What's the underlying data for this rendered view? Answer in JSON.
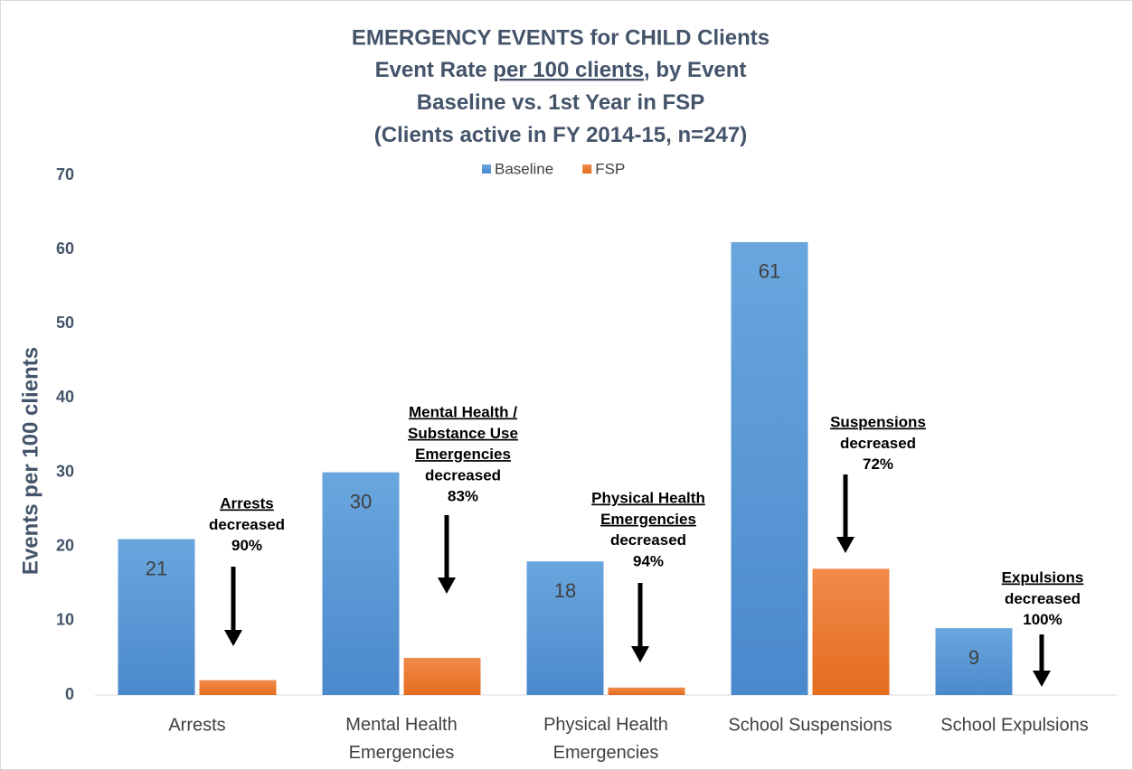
{
  "chart_data": {
    "type": "bar",
    "title": "EMERGENCY EVENTS for CHILD Clients",
    "subtitle_lines": [
      [
        {
          "text": "Event Rate "
        },
        {
          "text": "per 100 clients",
          "underline": true
        },
        {
          "text": ", by Event"
        }
      ],
      [
        {
          "text": "Baseline vs. 1st Year in FSP"
        }
      ],
      [
        {
          "text": "(Clients active in FY 2014-15, n=247)"
        }
      ]
    ],
    "ylabel": "Events per 100 clients",
    "categories": [
      "Arrests",
      "Mental Health Emergencies",
      "Physical Health Emergencies",
      "School Suspensions",
      "School Expulsions"
    ],
    "series": [
      {
        "name": "Baseline",
        "color": "#5b9bd5",
        "values": [
          21,
          30,
          18,
          61,
          9
        ],
        "show_labels": true
      },
      {
        "name": "FSP",
        "color": "#ed7d31",
        "values": [
          2,
          5,
          1,
          17,
          0
        ],
        "show_labels": false
      }
    ],
    "ylim": [
      0,
      70
    ],
    "yticks": [
      0,
      10,
      20,
      30,
      40,
      50,
      60,
      70
    ],
    "grid": true,
    "legend": "top",
    "annotations": [
      {
        "lines": [
          {
            "text": "Arrests",
            "underline": true
          },
          {
            "text": "decreased"
          },
          {
            "text": "90%"
          }
        ]
      },
      {
        "lines": [
          {
            "text": "Mental Health /",
            "underline": true
          },
          {
            "text": "Substance Use",
            "underline": true
          },
          {
            "text": "Emergencies",
            "underline": true
          },
          {
            "text": "decreased"
          },
          {
            "text": "83%"
          }
        ]
      },
      {
        "lines": [
          {
            "text": "Physical Health",
            "underline": true
          },
          {
            "text": "Emergencies",
            "underline": true
          },
          {
            "text": "decreased"
          },
          {
            "text": "94%"
          }
        ]
      },
      {
        "lines": [
          {
            "text": "Suspensions",
            "underline": true
          },
          {
            "text": "decreased"
          },
          {
            "text": "72%"
          }
        ]
      },
      {
        "lines": [
          {
            "text": "Expulsions",
            "underline": true
          },
          {
            "text": "decreased"
          },
          {
            "text": "100%"
          }
        ]
      }
    ]
  }
}
